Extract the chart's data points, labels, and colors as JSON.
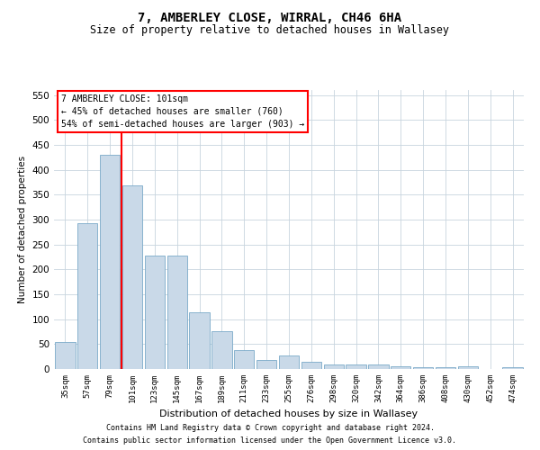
{
  "title": "7, AMBERLEY CLOSE, WIRRAL, CH46 6HA",
  "subtitle": "Size of property relative to detached houses in Wallasey",
  "xlabel": "Distribution of detached houses by size in Wallasey",
  "ylabel": "Number of detached properties",
  "footer1": "Contains HM Land Registry data © Crown copyright and database right 2024.",
  "footer2": "Contains public sector information licensed under the Open Government Licence v3.0.",
  "annotation_title": "7 AMBERLEY CLOSE: 101sqm",
  "annotation_line2": "← 45% of detached houses are smaller (760)",
  "annotation_line3": "54% of semi-detached houses are larger (903) →",
  "bar_color": "#c9d9e8",
  "bar_edge_color": "#7aaac8",
  "vline_color": "red",
  "categories": [
    "35sqm",
    "57sqm",
    "79sqm",
    "101sqm",
    "123sqm",
    "145sqm",
    "167sqm",
    "189sqm",
    "211sqm",
    "233sqm",
    "255sqm",
    "276sqm",
    "298sqm",
    "320sqm",
    "342sqm",
    "364sqm",
    "386sqm",
    "408sqm",
    "430sqm",
    "452sqm",
    "474sqm"
  ],
  "values": [
    55,
    293,
    430,
    368,
    227,
    227,
    113,
    76,
    38,
    18,
    27,
    15,
    9,
    9,
    9,
    6,
    4,
    4,
    5,
    0,
    4
  ],
  "ylim": [
    0,
    560
  ],
  "yticks": [
    0,
    50,
    100,
    150,
    200,
    250,
    300,
    350,
    400,
    450,
    500,
    550
  ],
  "vline_x_index": 3,
  "background_color": "#ffffff",
  "grid_color": "#c8d4de"
}
